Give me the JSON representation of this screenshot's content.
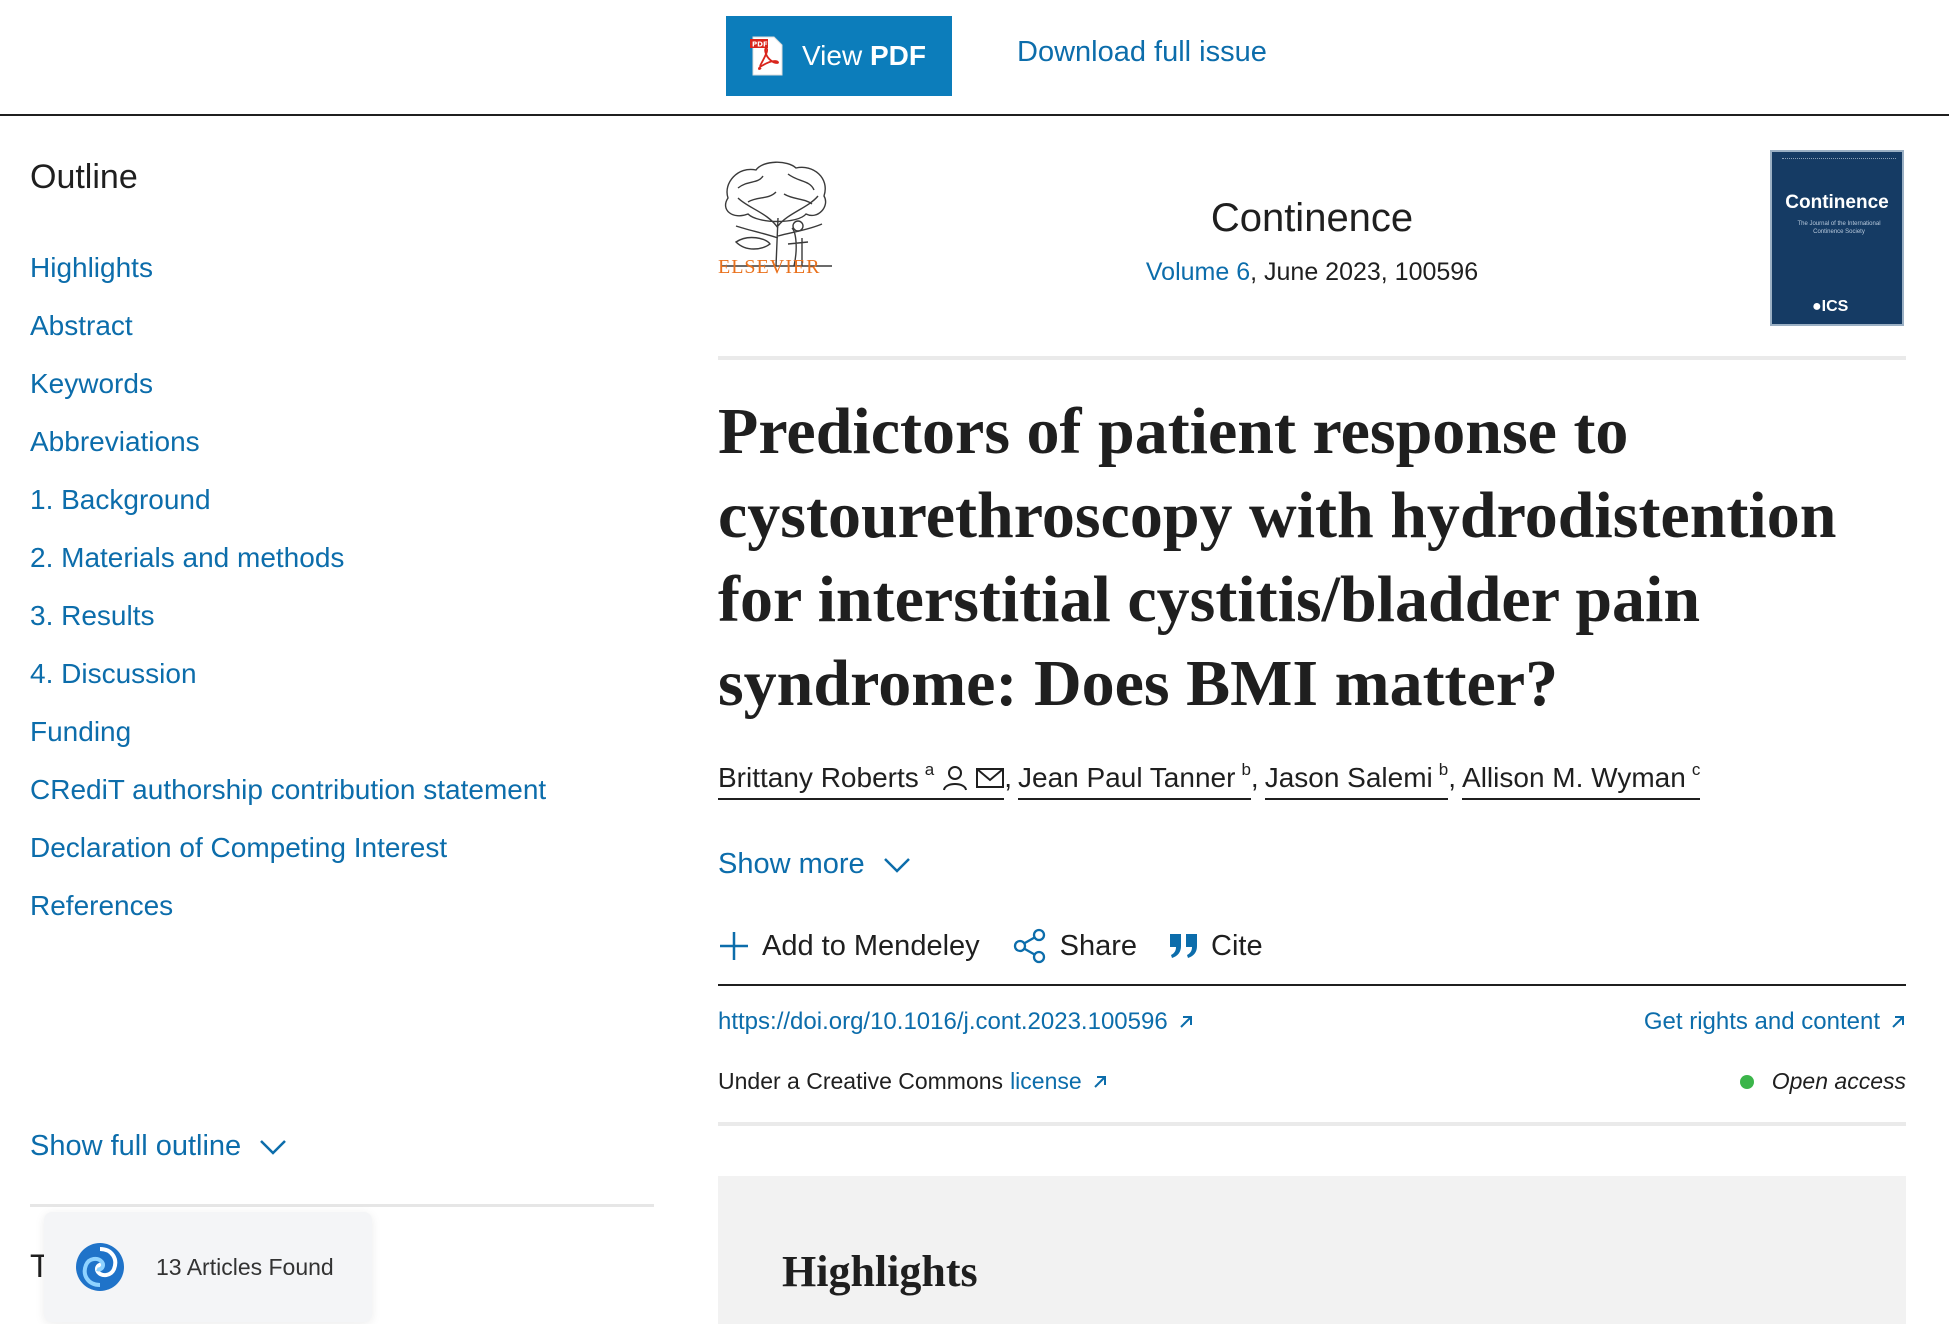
{
  "topbar": {
    "view_pdf_prefix": "View",
    "view_pdf_bold": "PDF",
    "download_full_issue": "Download full issue"
  },
  "sidebar": {
    "outline_title": "Outline",
    "items": [
      {
        "label": "Highlights"
      },
      {
        "label": "Abstract"
      },
      {
        "label": "Keywords"
      },
      {
        "label": "Abbreviations"
      },
      {
        "label": "1. Background"
      },
      {
        "label": "2. Materials and methods"
      },
      {
        "label": "3. Results"
      },
      {
        "label": "4. Discussion"
      },
      {
        "label": "Funding"
      },
      {
        "label": "CRediT authorship contribution statement"
      },
      {
        "label": "Declaration of Competing Interest"
      },
      {
        "label": "References"
      }
    ],
    "show_full_outline": "Show full outline",
    "partial_heading": "T"
  },
  "toast": {
    "text": "13 Articles Found"
  },
  "journal": {
    "publisher": "ELSEVIER",
    "name": "Continence",
    "volume_link": "Volume 6",
    "date_number": ", June 2023, 100596",
    "cover_title": "Continence",
    "cover_subtitle": "The Journal of the International Continence Society",
    "cover_brand": "ICS"
  },
  "article": {
    "title": "Predictors of patient response to cystourethroscopy with hydrodistention for interstitial cystitis/bladder pain syndrome: Does BMI matter?",
    "authors": [
      {
        "name": "Brittany Roberts",
        "sup": "a"
      },
      {
        "name": "Jean Paul Tanner",
        "sup": "b"
      },
      {
        "name": "Jason Salemi",
        "sup": "b"
      },
      {
        "name": "Allison M. Wyman",
        "sup": "c"
      }
    ],
    "author_separator": ",",
    "show_more": "Show more"
  },
  "actions": {
    "add_to_mendeley": "Add to Mendeley",
    "share": "Share",
    "cite": "Cite"
  },
  "meta": {
    "doi": "https://doi.org/10.1016/j.cont.2023.100596",
    "rights": "Get rights and content",
    "license_prefix": "Under a Creative Commons",
    "license_link": "license",
    "open_access": "Open access"
  },
  "highlights": {
    "heading": "Highlights"
  },
  "colors": {
    "accent_blue": "#0c7dbb",
    "link_blue": "#0c6dab",
    "elsevier_orange": "#e9711c",
    "open_access_green": "#3bb54a",
    "cover_navy": "#153b64"
  }
}
